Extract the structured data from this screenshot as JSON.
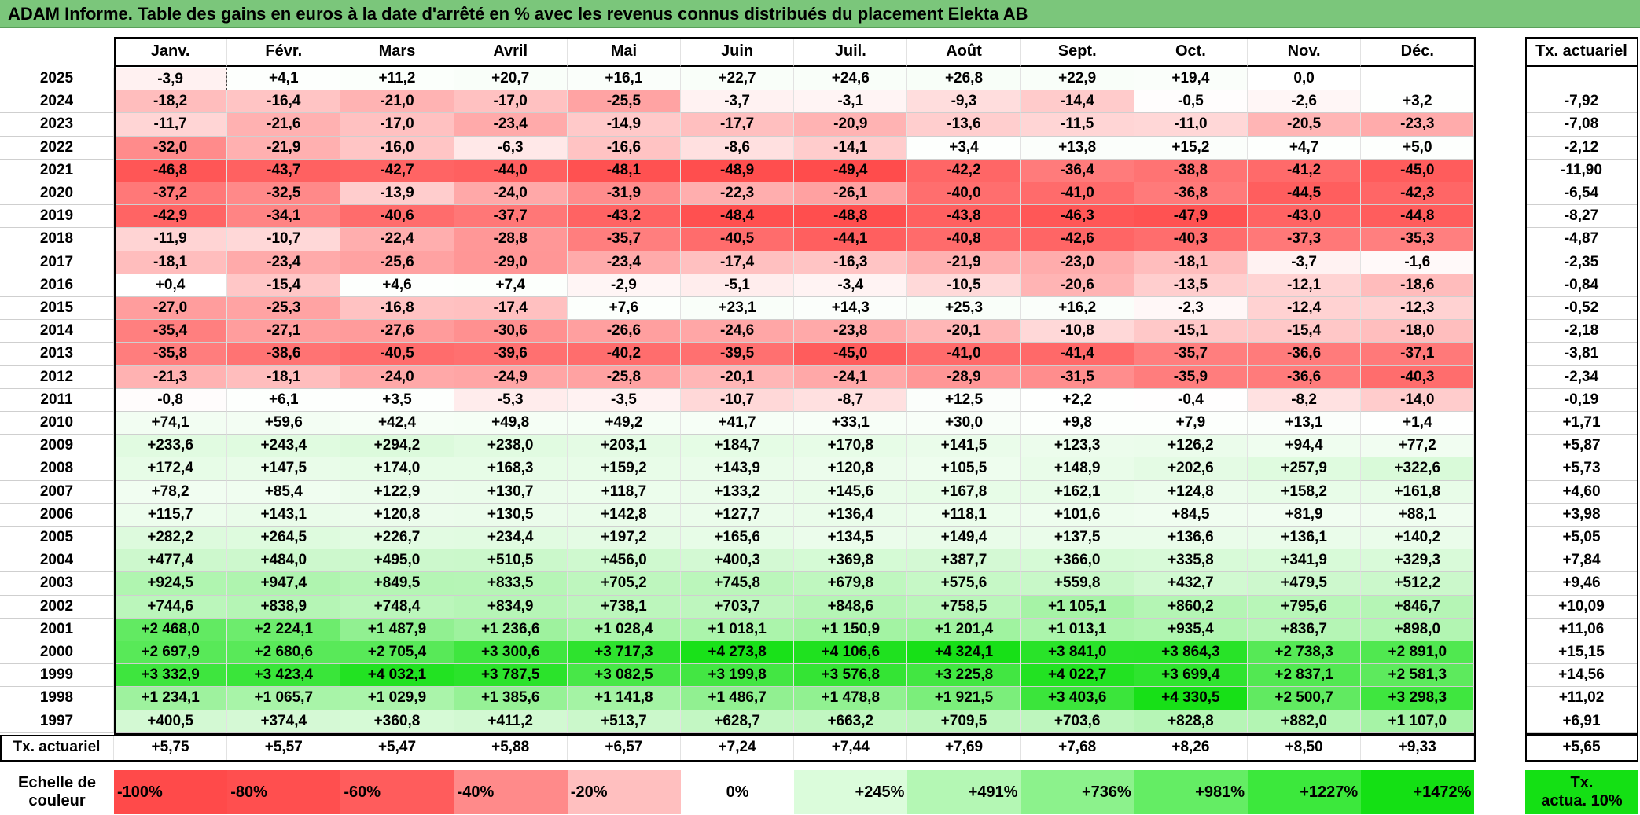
{
  "title": "ADAM Informe. Table des gains en euros à la date d'arrêté en % avec les revenus connus distribués du placement Elekta AB",
  "months": [
    "Janv.",
    "Févr.",
    "Mars",
    "Avril",
    "Mai",
    "Juin",
    "Juil.",
    "Août",
    "Sept.",
    "Oct.",
    "Nov.",
    "Déc."
  ],
  "rate_header": "Tx. actuariel",
  "rows": [
    {
      "year": "2025",
      "values": [
        "-3,9",
        "+4,1",
        "+11,2",
        "+20,7",
        "+16,1",
        "+22,7",
        "+24,6",
        "+26,8",
        "+22,9",
        "+19,4",
        "0,0",
        ""
      ],
      "rate": ""
    },
    {
      "year": "2024",
      "values": [
        "-18,2",
        "-16,4",
        "-21,0",
        "-17,0",
        "-25,5",
        "-3,7",
        "-3,1",
        "-9,3",
        "-14,4",
        "-0,5",
        "-2,6",
        "+3,2"
      ],
      "rate": "-7,92"
    },
    {
      "year": "2023",
      "values": [
        "-11,7",
        "-21,6",
        "-17,0",
        "-23,4",
        "-14,9",
        "-17,7",
        "-20,9",
        "-13,6",
        "-11,5",
        "-11,0",
        "-20,5",
        "-23,3"
      ],
      "rate": "-7,08"
    },
    {
      "year": "2022",
      "values": [
        "-32,0",
        "-21,9",
        "-16,0",
        "-6,3",
        "-16,6",
        "-8,6",
        "-14,1",
        "+3,4",
        "+13,8",
        "+15,2",
        "+4,7",
        "+5,0"
      ],
      "rate": "-2,12"
    },
    {
      "year": "2021",
      "values": [
        "-46,8",
        "-43,7",
        "-42,7",
        "-44,0",
        "-48,1",
        "-48,9",
        "-49,4",
        "-42,2",
        "-36,4",
        "-38,8",
        "-41,2",
        "-45,0"
      ],
      "rate": "-11,90"
    },
    {
      "year": "2020",
      "values": [
        "-37,2",
        "-32,5",
        "-13,9",
        "-24,0",
        "-31,9",
        "-22,3",
        "-26,1",
        "-40,0",
        "-41,0",
        "-36,8",
        "-44,5",
        "-42,3"
      ],
      "rate": "-6,54"
    },
    {
      "year": "2019",
      "values": [
        "-42,9",
        "-34,1",
        "-40,6",
        "-37,7",
        "-43,2",
        "-48,4",
        "-48,8",
        "-43,8",
        "-46,3",
        "-47,9",
        "-43,0",
        "-44,8"
      ],
      "rate": "-8,27"
    },
    {
      "year": "2018",
      "values": [
        "-11,9",
        "-10,7",
        "-22,4",
        "-28,8",
        "-35,7",
        "-40,5",
        "-44,1",
        "-40,8",
        "-42,6",
        "-40,3",
        "-37,3",
        "-35,3"
      ],
      "rate": "-4,87"
    },
    {
      "year": "2017",
      "values": [
        "-18,1",
        "-23,4",
        "-25,6",
        "-29,0",
        "-23,4",
        "-17,4",
        "-16,3",
        "-21,9",
        "-23,0",
        "-18,1",
        "-3,7",
        "-1,6"
      ],
      "rate": "-2,35"
    },
    {
      "year": "2016",
      "values": [
        "+0,4",
        "-15,4",
        "+4,6",
        "+7,4",
        "-2,9",
        "-5,1",
        "-3,4",
        "-10,5",
        "-20,6",
        "-13,5",
        "-12,1",
        "-18,6"
      ],
      "rate": "-0,84"
    },
    {
      "year": "2015",
      "values": [
        "-27,0",
        "-25,3",
        "-16,8",
        "-17,4",
        "+7,6",
        "+23,1",
        "+14,3",
        "+25,3",
        "+16,2",
        "-2,3",
        "-12,4",
        "-12,3"
      ],
      "rate": "-0,52"
    },
    {
      "year": "2014",
      "values": [
        "-35,4",
        "-27,1",
        "-27,6",
        "-30,6",
        "-26,6",
        "-24,6",
        "-23,8",
        "-20,1",
        "-10,8",
        "-15,1",
        "-15,4",
        "-18,0"
      ],
      "rate": "-2,18"
    },
    {
      "year": "2013",
      "values": [
        "-35,8",
        "-38,6",
        "-40,5",
        "-39,6",
        "-40,2",
        "-39,5",
        "-45,0",
        "-41,0",
        "-41,4",
        "-35,7",
        "-36,6",
        "-37,1"
      ],
      "rate": "-3,81"
    },
    {
      "year": "2012",
      "values": [
        "-21,3",
        "-18,1",
        "-24,0",
        "-24,9",
        "-25,8",
        "-20,1",
        "-24,1",
        "-28,9",
        "-31,5",
        "-35,9",
        "-36,6",
        "-40,3"
      ],
      "rate": "-2,34"
    },
    {
      "year": "2011",
      "values": [
        "-0,8",
        "+6,1",
        "+3,5",
        "-5,3",
        "-3,5",
        "-10,7",
        "-8,7",
        "+12,5",
        "+2,2",
        "-0,4",
        "-8,2",
        "-14,0"
      ],
      "rate": "-0,19"
    },
    {
      "year": "2010",
      "values": [
        "+74,1",
        "+59,6",
        "+42,4",
        "+49,8",
        "+49,2",
        "+41,7",
        "+33,1",
        "+30,0",
        "+9,8",
        "+7,9",
        "+13,1",
        "+1,4"
      ],
      "rate": "+1,71"
    },
    {
      "year": "2009",
      "values": [
        "+233,6",
        "+243,4",
        "+294,2",
        "+238,0",
        "+203,1",
        "+184,7",
        "+170,8",
        "+141,5",
        "+123,3",
        "+126,2",
        "+94,4",
        "+77,2"
      ],
      "rate": "+5,87"
    },
    {
      "year": "2008",
      "values": [
        "+172,4",
        "+147,5",
        "+174,0",
        "+168,3",
        "+159,2",
        "+143,9",
        "+120,8",
        "+105,5",
        "+148,9",
        "+202,6",
        "+257,9",
        "+322,6"
      ],
      "rate": "+5,73"
    },
    {
      "year": "2007",
      "values": [
        "+78,2",
        "+85,4",
        "+122,9",
        "+130,7",
        "+118,7",
        "+133,2",
        "+145,6",
        "+167,8",
        "+162,1",
        "+124,8",
        "+158,2",
        "+161,8"
      ],
      "rate": "+4,60"
    },
    {
      "year": "2006",
      "values": [
        "+115,7",
        "+143,1",
        "+120,8",
        "+130,5",
        "+142,8",
        "+127,7",
        "+136,4",
        "+118,1",
        "+101,6",
        "+84,5",
        "+81,9",
        "+88,1"
      ],
      "rate": "+3,98"
    },
    {
      "year": "2005",
      "values": [
        "+282,2",
        "+264,5",
        "+226,7",
        "+234,4",
        "+197,2",
        "+165,6",
        "+134,5",
        "+149,4",
        "+137,5",
        "+136,6",
        "+136,1",
        "+140,2"
      ],
      "rate": "+5,05"
    },
    {
      "year": "2004",
      "values": [
        "+477,4",
        "+484,0",
        "+495,0",
        "+510,5",
        "+456,0",
        "+400,3",
        "+369,8",
        "+387,7",
        "+366,0",
        "+335,8",
        "+341,9",
        "+329,3"
      ],
      "rate": "+7,84"
    },
    {
      "year": "2003",
      "values": [
        "+924,5",
        "+947,4",
        "+849,5",
        "+833,5",
        "+705,2",
        "+745,8",
        "+679,8",
        "+575,6",
        "+559,8",
        "+432,7",
        "+479,5",
        "+512,2"
      ],
      "rate": "+9,46"
    },
    {
      "year": "2002",
      "values": [
        "+744,6",
        "+838,9",
        "+748,4",
        "+834,9",
        "+738,1",
        "+703,7",
        "+848,6",
        "+758,5",
        "+1 105,1",
        "+860,2",
        "+795,6",
        "+846,7"
      ],
      "rate": "+10,09"
    },
    {
      "year": "2001",
      "values": [
        "+2 468,0",
        "+2 224,1",
        "+1 487,9",
        "+1 236,6",
        "+1 028,4",
        "+1 018,1",
        "+1 150,9",
        "+1 201,4",
        "+1 013,1",
        "+935,4",
        "+836,7",
        "+898,0"
      ],
      "rate": "+11,06"
    },
    {
      "year": "2000",
      "values": [
        "+2 697,9",
        "+2 680,6",
        "+2 705,4",
        "+3 300,6",
        "+3 717,3",
        "+4 273,8",
        "+4 106,6",
        "+4 324,1",
        "+3 841,0",
        "+3 864,3",
        "+2 738,3",
        "+2 891,0"
      ],
      "rate": "+15,15"
    },
    {
      "year": "1999",
      "values": [
        "+3 332,9",
        "+3 423,4",
        "+4 032,1",
        "+3 787,5",
        "+3 082,5",
        "+3 199,8",
        "+3 576,8",
        "+3 225,8",
        "+4 022,7",
        "+3 699,4",
        "+2 837,1",
        "+2 581,3"
      ],
      "rate": "+14,56"
    },
    {
      "year": "1998",
      "values": [
        "+1 234,1",
        "+1 065,7",
        "+1 029,9",
        "+1 385,6",
        "+1 141,8",
        "+1 486,7",
        "+1 478,8",
        "+1 921,5",
        "+3 403,6",
        "+4 330,5",
        "+2 500,7",
        "+3 298,3"
      ],
      "rate": "+11,02"
    },
    {
      "year": "1997",
      "values": [
        "+400,5",
        "+374,4",
        "+360,8",
        "+411,2",
        "+513,7",
        "+628,7",
        "+663,2",
        "+709,5",
        "+703,6",
        "+828,8",
        "+882,0",
        "+1 107,0"
      ],
      "rate": "+6,91"
    }
  ],
  "footer": {
    "label": "Tx. actuariel",
    "values": [
      "+5,75",
      "+5,57",
      "+5,47",
      "+5,88",
      "+6,57",
      "+7,24",
      "+7,44",
      "+7,69",
      "+7,68",
      "+8,26",
      "+8,50",
      "+9,33"
    ],
    "rate": "+5,65"
  },
  "scale": {
    "label_line1": "Echelle de",
    "label_line2": "couleur",
    "items": [
      {
        "label": "-100%",
        "color": "#ff4a4a",
        "align": "left"
      },
      {
        "label": "-80%",
        "color": "#ff4f4f",
        "align": "left"
      },
      {
        "label": "-60%",
        "color": "#ff5c5c",
        "align": "left"
      },
      {
        "label": "-40%",
        "color": "#ff8a8a",
        "align": "left"
      },
      {
        "label": "-20%",
        "color": "#ffbfbf",
        "align": "left"
      },
      {
        "label": "0%",
        "color": "#ffffff",
        "align": "center"
      },
      {
        "label": "+245%",
        "color": "#dbfcdb",
        "align": "right"
      },
      {
        "label": "+491%",
        "color": "#b4f7b4",
        "align": "right"
      },
      {
        "label": "+736%",
        "color": "#8cf28c",
        "align": "right"
      },
      {
        "label": "+981%",
        "color": "#64ed64",
        "align": "right"
      },
      {
        "label": "+1227%",
        "color": "#3ce83c",
        "align": "right"
      },
      {
        "label": "+1472%",
        "color": "#14e014",
        "align": "right"
      }
    ],
    "rate_label_line1": "Tx.",
    "rate_label_line2": "actua. 10%",
    "rate_color": "#14e014"
  }
}
